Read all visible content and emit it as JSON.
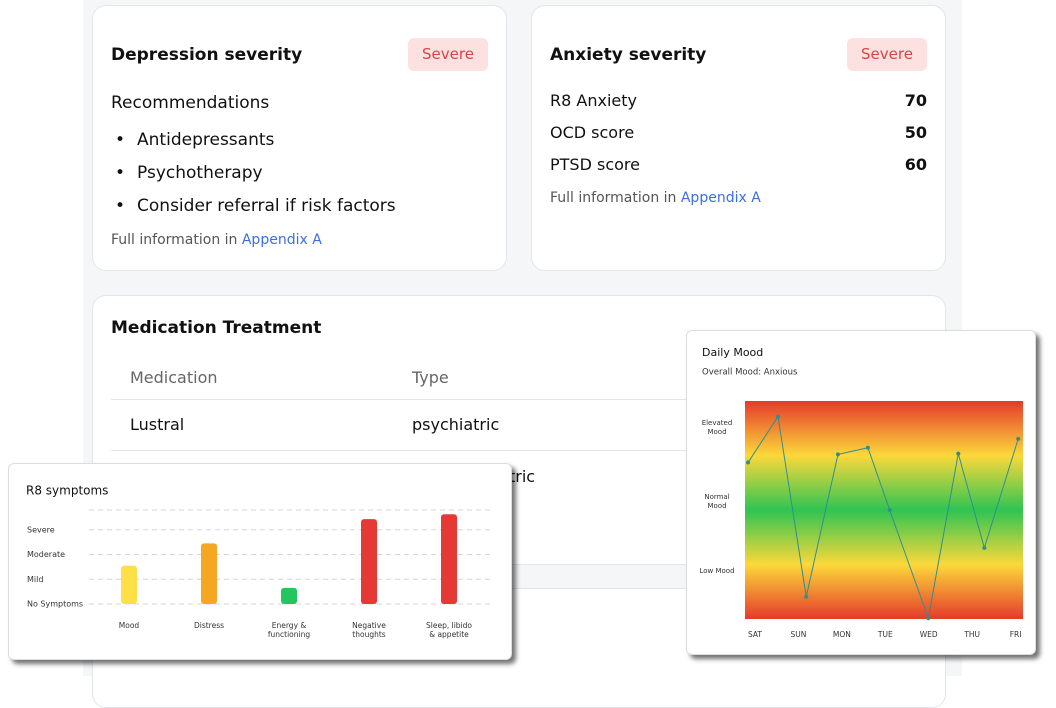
{
  "depression": {
    "title": "Depression severity",
    "badge": "Severe",
    "subtitle": "Recommendations",
    "items": [
      "Antidepressants",
      "Psychotherapy",
      "Consider referral if risk factors"
    ],
    "footer": "Full information in",
    "link": "Appendix A"
  },
  "anxiety": {
    "title": "Anxiety severity",
    "badge": "Severe",
    "scores": [
      {
        "label": "R8 Anxiety",
        "value": 70
      },
      {
        "label": "OCD score",
        "value": 50
      },
      {
        "label": "PTSD score",
        "value": 60
      }
    ],
    "footer": "Full information in",
    "link": "Appendix A"
  },
  "medication": {
    "title": "Medication Treatment",
    "columns": [
      "Medication",
      "Type"
    ],
    "rows": [
      {
        "medication": "Lustral",
        "type": "psychiatric"
      },
      {
        "type": "non-psychiatric"
      }
    ]
  },
  "chart_data": [
    {
      "type": "bar",
      "title": "R8 symptoms",
      "categories": [
        "Mood",
        "Distress",
        "Energy & functioning",
        "Negative thoughts",
        "Sleep, libido & appetite"
      ],
      "values": [
        1.55,
        2.45,
        0.65,
        3.43,
        3.63
      ],
      "colors": [
        "#fde047",
        "#f5a623",
        "#22c55e",
        "#e53935",
        "#e53935"
      ],
      "ylim": [
        0,
        3.8
      ],
      "yticks": [
        {
          "value": 0,
          "label": "No Symptoms"
        },
        {
          "value": 1,
          "label": "Mild"
        },
        {
          "value": 2,
          "label": "Moderate"
        },
        {
          "value": 3,
          "label": "Severe"
        }
      ],
      "grid": true
    },
    {
      "type": "line",
      "title": "Daily Mood",
      "subtitle": "Overall Mood: Anxious",
      "x": [
        -0.16,
        0.53,
        1.18,
        1.91,
        2.6,
        3.1,
        3.99,
        4.68,
        5.28,
        6.06
      ],
      "series": [
        {
          "name": "Mood",
          "color": "#2f8f8f",
          "values": [
            0.53,
            1.15,
            -1.28,
            0.64,
            0.73,
            -0.11,
            -1.57,
            0.65,
            -0.62,
            0.85
          ]
        }
      ],
      "xlim": [
        -0.23,
        6.17
      ],
      "xticks": [
        {
          "value": 0,
          "label": "SAT"
        },
        {
          "value": 1,
          "label": "SUN"
        },
        {
          "value": 2,
          "label": "MON"
        },
        {
          "value": 3,
          "label": "TUE"
        },
        {
          "value": 4,
          "label": "WED"
        },
        {
          "value": 5,
          "label": "THU"
        },
        {
          "value": 6,
          "label": "FRI"
        }
      ],
      "ylim": [
        -1.58,
        1.36
      ],
      "yticks": [
        {
          "value": -1,
          "label": "Low Mood"
        },
        {
          "value": 0,
          "label": "Normal Mood"
        },
        {
          "value": 1,
          "label": "Elevated Mood"
        }
      ]
    }
  ]
}
